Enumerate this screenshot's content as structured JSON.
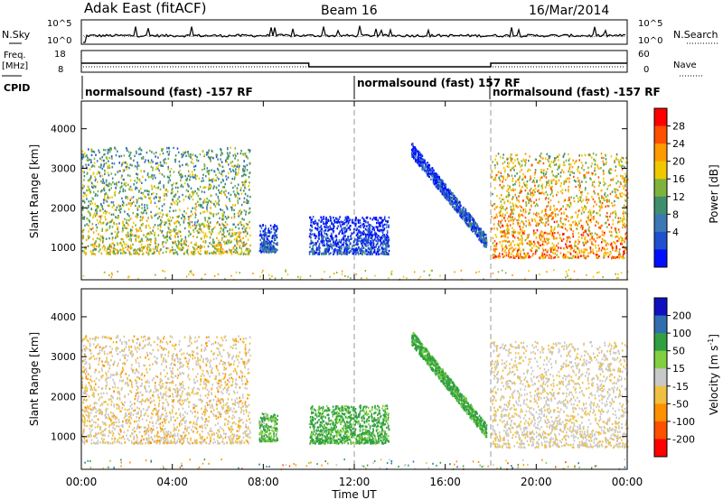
{
  "header": {
    "site": "Adak East (fitACF)",
    "beam": "Beam 16",
    "date": "16/Mar/2014"
  },
  "chart_data": {
    "type": "heatmap",
    "xlabel": "Time UT",
    "x_ticks": [
      "00:00",
      "04:00",
      "08:00",
      "12:00",
      "16:00",
      "20:00",
      "00:00"
    ],
    "x_range_hours": [
      0,
      24
    ],
    "dashed_markers_hours": [
      12,
      18
    ],
    "noise_panel": {
      "left_label": "N.Sky",
      "right_label": "N.Search",
      "left_ticks": [
        "10^5",
        "10^0"
      ],
      "right_ticks": [
        "10^5",
        "10^0"
      ]
    },
    "freq_panel": {
      "left_label_1": "Freq.",
      "left_label_2": "[MHz]",
      "left_ticks": [
        "18",
        "8"
      ],
      "right_label": "Nave",
      "right_ticks": [
        "60",
        "0"
      ],
      "freq_steps": [
        {
          "from": 0,
          "to": 10,
          "value_mhz": 12
        },
        {
          "from": 10,
          "to": 18,
          "value_mhz": 10
        },
        {
          "from": 18,
          "to": 24,
          "value_mhz": 12
        }
      ],
      "nave": 30
    },
    "cpid": {
      "label": "CPID",
      "segments": [
        {
          "from": 0,
          "to": 12,
          "text": "normalsound (fast) -157 RF"
        },
        {
          "from": 12,
          "to": 18,
          "text": "normalsound (fast) 157 RF"
        },
        {
          "from": 18,
          "to": 24,
          "text": "normalsound (fast) -157 RF"
        }
      ]
    },
    "power_panel": {
      "ylabel": "Slant Range [km]",
      "y_ticks": [
        1000,
        2000,
        3000,
        4000
      ],
      "ylim": [
        180,
        4700
      ],
      "colorbar_label": "Power [dB]",
      "colorbar_ticks": [
        "28",
        "24",
        "20",
        "16",
        "12",
        "8",
        "4"
      ],
      "colorbar_colors": [
        "#ff0000",
        "#ff5000",
        "#ff9a00",
        "#f0c800",
        "#7fb43c",
        "#3f8f6f",
        "#3c78b4",
        "#2050d0",
        "#0010ff"
      ]
    },
    "velocity_panel": {
      "ylabel": "Slant Range [km]",
      "y_ticks": [
        1000,
        2000,
        3000,
        4000
      ],
      "ylim": [
        180,
        4700
      ],
      "colorbar_label": "Velocity [m s^-1]",
      "colorbar_ticks": [
        "200",
        "100",
        "50",
        "15",
        "-15",
        "-50",
        "-100",
        "-200"
      ],
      "colorbar_colors": [
        "#1010c0",
        "#2f6fb0",
        "#30a040",
        "#80d040",
        "#c8c8c8",
        "#f0c040",
        "#ff9000",
        "#ff5000",
        "#ff0000"
      ]
    },
    "echo_regions": [
      {
        "hours": [
          0,
          7.4
        ],
        "range_km": [
          850,
          3550
        ],
        "power_db": 18,
        "velocity": -15,
        "feature": "banded ground scatter"
      },
      {
        "hours": [
          7.8,
          8.6
        ],
        "range_km": [
          900,
          1600
        ],
        "power_db": 8,
        "velocity": 30,
        "feature": "weak scatter"
      },
      {
        "hours": [
          10.0,
          13.5
        ],
        "range_km": [
          850,
          1800
        ],
        "power_db": 6,
        "velocity": 40,
        "feature": "ionospheric scatter"
      },
      {
        "hours": [
          14.5,
          17.8
        ],
        "range_km": [
          1150,
          3500
        ],
        "power_db": 8,
        "velocity": 40,
        "feature": "descending trace"
      },
      {
        "hours": [
          18.0,
          24.0
        ],
        "range_km": [
          750,
          3400
        ],
        "power_db": 24,
        "velocity": -10,
        "feature": "ground scatter"
      }
    ]
  }
}
